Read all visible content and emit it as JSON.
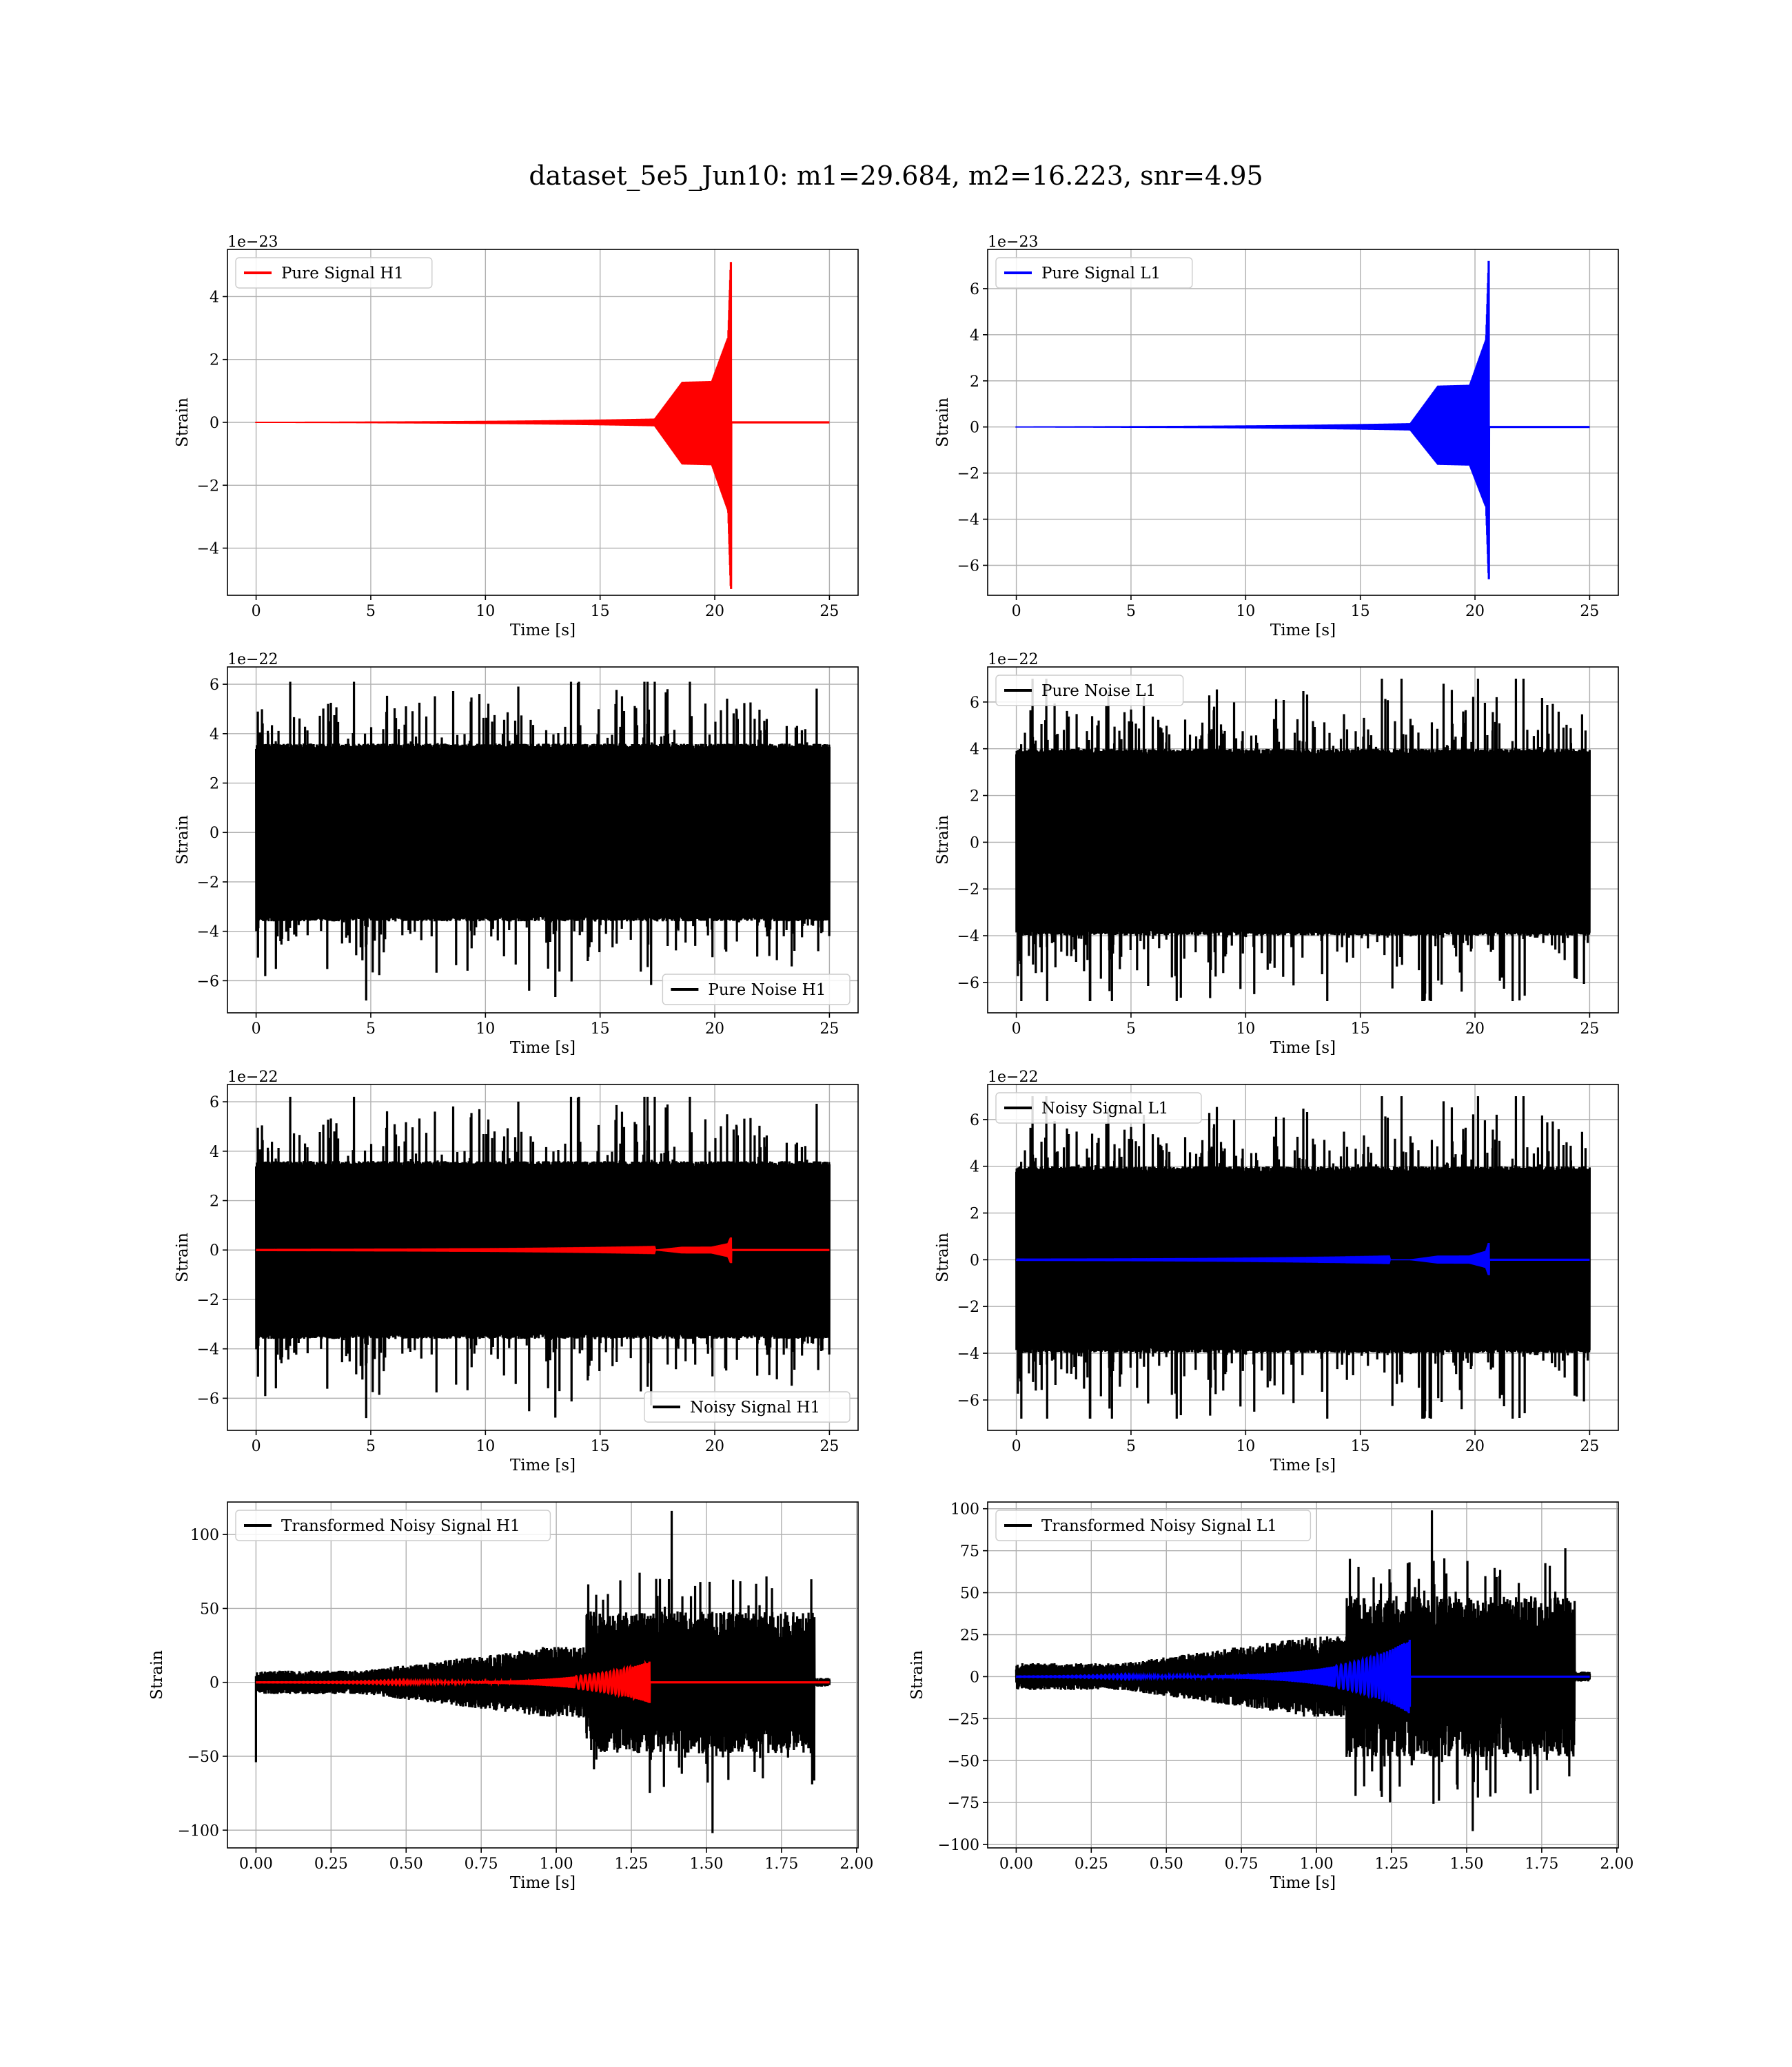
{
  "figure": {
    "title": "dataset_5e5_Jun10: m1=29.684, m2=16.223, snr=4.95"
  },
  "colors": {
    "h1_signal": "#ff0000",
    "l1_signal": "#0000ff",
    "noise": "#000000",
    "grid": "#b0b0b0"
  },
  "chart_data": [
    {
      "id": "pure-signal-h1",
      "type": "line",
      "row": 0,
      "col": 0,
      "xlabel": "Time [s]",
      "ylabel": "Strain",
      "offset": "1e−23",
      "xlim": [
        -1.25,
        26.25
      ],
      "ylim": [
        -5.5,
        5.5
      ],
      "xticks": [
        0,
        5,
        10,
        15,
        20,
        25
      ],
      "xtick_labels": [
        "0",
        "5",
        "10",
        "15",
        "20",
        "25"
      ],
      "yticks": [
        -4,
        -2,
        0,
        2,
        4
      ],
      "ytick_labels": [
        "−4",
        "−2",
        "0",
        "2",
        "4"
      ],
      "legend": {
        "loc": "upper left",
        "entries": [
          {
            "label": "Pure Signal H1",
            "color": "#ff0000"
          }
        ]
      },
      "series": [
        {
          "name": "Pure Signal H1",
          "color": "#ff0000",
          "kind": "chirp",
          "t_start": 0,
          "t_merge": 20.7,
          "t_end": 25,
          "peak_pos": 5.1,
          "peak_neg": -5.3,
          "plateau": 1.15,
          "plateau_start": 18.6
        }
      ]
    },
    {
      "id": "pure-signal-l1",
      "type": "line",
      "row": 0,
      "col": 1,
      "xlabel": "Time [s]",
      "ylabel": "Strain",
      "offset": "1e−23",
      "xlim": [
        -1.25,
        26.25
      ],
      "ylim": [
        -7.3,
        7.7
      ],
      "xticks": [
        0,
        5,
        10,
        15,
        20,
        25
      ],
      "xtick_labels": [
        "0",
        "5",
        "10",
        "15",
        "20",
        "25"
      ],
      "yticks": [
        -6,
        -4,
        -2,
        0,
        2,
        4,
        6
      ],
      "ytick_labels": [
        "−6",
        "−4",
        "−2",
        "0",
        "2",
        "4",
        "6"
      ],
      "legend": {
        "loc": "upper left",
        "entries": [
          {
            "label": "Pure Signal L1",
            "color": "#0000ff"
          }
        ]
      },
      "series": [
        {
          "name": "Pure Signal L1",
          "color": "#0000ff",
          "kind": "chirp",
          "t_start": 0,
          "t_merge": 20.6,
          "t_end": 25,
          "peak_pos": 7.2,
          "peak_neg": -6.6,
          "plateau": 1.6,
          "plateau_start": 18.4
        }
      ]
    },
    {
      "id": "pure-noise-h1",
      "type": "line",
      "row": 1,
      "col": 0,
      "xlabel": "Time [s]",
      "ylabel": "Strain",
      "offset": "1e−22",
      "xlim": [
        -1.25,
        26.25
      ],
      "ylim": [
        -7.3,
        6.7
      ],
      "xticks": [
        0,
        5,
        10,
        15,
        20,
        25
      ],
      "xtick_labels": [
        "0",
        "5",
        "10",
        "15",
        "20",
        "25"
      ],
      "yticks": [
        -6,
        -4,
        -2,
        0,
        2,
        4,
        6
      ],
      "ytick_labels": [
        "−6",
        "−4",
        "−2",
        "0",
        "2",
        "4",
        "6"
      ],
      "legend": {
        "loc": "lower right",
        "entries": [
          {
            "label": "Pure Noise H1",
            "color": "#000000"
          }
        ]
      },
      "series": [
        {
          "name": "Pure Noise H1",
          "color": "#000000",
          "kind": "noise",
          "t_start": 0,
          "t_end": 25,
          "core": 3.6,
          "max": 6.1,
          "min": -6.8,
          "seed": 11
        }
      ]
    },
    {
      "id": "pure-noise-l1",
      "type": "line",
      "row": 1,
      "col": 1,
      "xlabel": "Time [s]",
      "ylabel": "Strain",
      "offset": "1e−22",
      "xlim": [
        -1.25,
        26.25
      ],
      "ylim": [
        -7.3,
        7.5
      ],
      "xticks": [
        0,
        5,
        10,
        15,
        20,
        25
      ],
      "xtick_labels": [
        "0",
        "5",
        "10",
        "15",
        "20",
        "25"
      ],
      "yticks": [
        -6,
        -4,
        -2,
        0,
        2,
        4,
        6
      ],
      "ytick_labels": [
        "−6",
        "−4",
        "−2",
        "0",
        "2",
        "4",
        "6"
      ],
      "legend": {
        "loc": "upper left",
        "entries": [
          {
            "label": "Pure Noise L1",
            "color": "#000000"
          }
        ]
      },
      "series": [
        {
          "name": "Pure Noise L1",
          "color": "#000000",
          "kind": "noise",
          "t_start": 0,
          "t_end": 25,
          "core": 4.0,
          "max": 7.0,
          "min": -6.8,
          "seed": 23
        }
      ]
    },
    {
      "id": "noisy-signal-h1",
      "type": "line",
      "row": 2,
      "col": 0,
      "xlabel": "Time [s]",
      "ylabel": "Strain",
      "offset": "1e−22",
      "xlim": [
        -1.25,
        26.25
      ],
      "ylim": [
        -7.3,
        6.7
      ],
      "xticks": [
        0,
        5,
        10,
        15,
        20,
        25
      ],
      "xtick_labels": [
        "0",
        "5",
        "10",
        "15",
        "20",
        "25"
      ],
      "yticks": [
        -6,
        -4,
        -2,
        0,
        2,
        4,
        6
      ],
      "ytick_labels": [
        "−6",
        "−4",
        "−2",
        "0",
        "2",
        "4",
        "6"
      ],
      "legend": {
        "loc": "lower right",
        "entries": [
          {
            "label": "Noisy Signal H1",
            "color": "#000000"
          }
        ]
      },
      "series": [
        {
          "name": "Noisy Signal H1",
          "color": "#000000",
          "kind": "noise",
          "t_start": 0,
          "t_end": 25,
          "core": 3.6,
          "max": 6.2,
          "min": -6.8,
          "seed": 11
        },
        {
          "name": "Pure Signal H1",
          "color": "#ff0000",
          "kind": "chirp",
          "t_start": 0,
          "t_merge": 20.7,
          "t_end": 25,
          "peak_pos": 0.51,
          "peak_neg": -0.53,
          "plateau": 0.12,
          "plateau_start": 18.6
        }
      ]
    },
    {
      "id": "noisy-signal-l1",
      "type": "line",
      "row": 2,
      "col": 1,
      "xlabel": "Time [s]",
      "ylabel": "Strain",
      "offset": "1e−22",
      "xlim": [
        -1.25,
        26.25
      ],
      "ylim": [
        -7.3,
        7.5
      ],
      "xticks": [
        0,
        5,
        10,
        15,
        20,
        25
      ],
      "xtick_labels": [
        "0",
        "5",
        "10",
        "15",
        "20",
        "25"
      ],
      "yticks": [
        -6,
        -4,
        -2,
        0,
        2,
        4,
        6
      ],
      "ytick_labels": [
        "−6",
        "−4",
        "−2",
        "0",
        "2",
        "4",
        "6"
      ],
      "legend": {
        "loc": "upper left",
        "entries": [
          {
            "label": "Noisy Signal L1",
            "color": "#000000"
          }
        ]
      },
      "series": [
        {
          "name": "Noisy Signal L1",
          "color": "#000000",
          "kind": "noise",
          "t_start": 0,
          "t_end": 25,
          "core": 4.0,
          "max": 7.0,
          "min": -6.8,
          "seed": 23
        },
        {
          "name": "Pure Signal L1",
          "color": "#0000ff",
          "kind": "chirp",
          "t_start": 0,
          "t_merge": 20.6,
          "t_end": 25,
          "peak_pos": 0.72,
          "peak_neg": -0.66,
          "plateau": 0.16,
          "plateau_start": 18.4
        }
      ]
    },
    {
      "id": "transformed-noisy-signal-h1",
      "type": "line",
      "row": 3,
      "col": 0,
      "xlabel": "Time [s]",
      "ylabel": "Strain",
      "offset": "",
      "xlim": [
        -0.095,
        2.005
      ],
      "ylim": [
        -112,
        122
      ],
      "xticks": [
        0,
        0.25,
        0.5,
        0.75,
        1.0,
        1.25,
        1.5,
        1.75,
        2.0
      ],
      "xtick_labels": [
        "0.00",
        "0.25",
        "0.50",
        "0.75",
        "1.00",
        "1.25",
        "1.50",
        "1.75",
        "2.00"
      ],
      "yticks": [
        -100,
        -50,
        0,
        50,
        100
      ],
      "ytick_labels": [
        "−100",
        "−50",
        "0",
        "50",
        "100"
      ],
      "legend": {
        "loc": "upper left",
        "entries": [
          {
            "label": "Transformed Noisy Signal H1",
            "color": "#000000"
          }
        ]
      },
      "series": [
        {
          "name": "Transformed Noisy Signal H1",
          "color": "#000000",
          "kind": "tnoise",
          "t_start": 0,
          "t_end": 1.91,
          "max": 116,
          "min": -102,
          "spike_t0": -54,
          "seed": 37
        },
        {
          "name": "Pure Signal H1",
          "color": "#ff0000",
          "kind": "tchirp",
          "t_start": 0,
          "t_merge": 1.31,
          "t_end": 1.91,
          "peak_pos": 14,
          "peak_neg": -14
        }
      ]
    },
    {
      "id": "transformed-noisy-signal-l1",
      "type": "line",
      "row": 3,
      "col": 1,
      "xlabel": "Time [s]",
      "ylabel": "Strain",
      "offset": "",
      "xlim": [
        -0.095,
        2.005
      ],
      "ylim": [
        -102,
        104
      ],
      "xticks": [
        0,
        0.25,
        0.5,
        0.75,
        1.0,
        1.25,
        1.5,
        1.75,
        2.0
      ],
      "xtick_labels": [
        "0.00",
        "0.25",
        "0.50",
        "0.75",
        "1.00",
        "1.25",
        "1.50",
        "1.75",
        "2.00"
      ],
      "yticks": [
        -100,
        -75,
        -50,
        -25,
        0,
        25,
        50,
        75,
        100
      ],
      "ytick_labels": [
        "−100",
        "−75",
        "−50",
        "−25",
        "0",
        "25",
        "50",
        "75",
        "100"
      ],
      "legend": {
        "loc": "upper left",
        "entries": [
          {
            "label": "Transformed Noisy Signal L1",
            "color": "#000000"
          }
        ]
      },
      "series": [
        {
          "name": "Transformed Noisy Signal L1",
          "color": "#000000",
          "kind": "tnoise",
          "t_start": 0,
          "t_end": 1.91,
          "max": 99,
          "min": -92,
          "spike_t0": 0,
          "seed": 53
        },
        {
          "name": "Pure Signal L1",
          "color": "#0000ff",
          "kind": "tchirp",
          "t_start": 0,
          "t_merge": 1.31,
          "t_end": 1.91,
          "peak_pos": 22,
          "peak_neg": -18
        }
      ]
    }
  ]
}
